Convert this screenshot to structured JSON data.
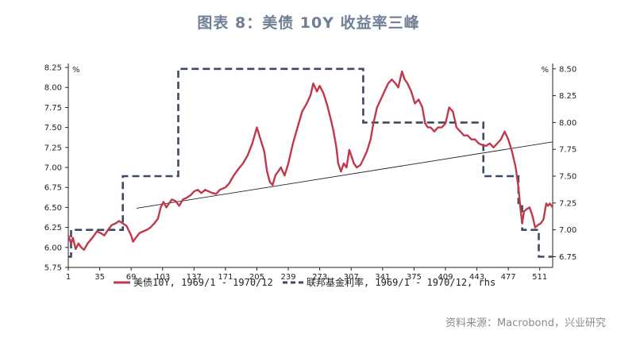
{
  "title": "图表 8：美债 10Y 收益率三峰",
  "source": "资料来源：Macrobond，兴业研究",
  "chart_data": {
    "type": "line",
    "x_ticks": [
      1,
      35,
      69,
      103,
      137,
      171,
      205,
      239,
      273,
      307,
      341,
      375,
      409,
      443,
      477,
      511
    ],
    "xlim": [
      1,
      525
    ],
    "left_axis": {
      "unit": "%",
      "ylim": [
        5.75,
        8.3
      ],
      "ticks": [
        "5.75",
        "6.00",
        "6.25",
        "6.50",
        "6.75",
        "7.00",
        "7.25",
        "7.50",
        "7.75",
        "8.00",
        "8.25"
      ]
    },
    "right_axis": {
      "unit": "%",
      "ylim": [
        6.65,
        8.55
      ],
      "ticks": [
        "6.75",
        "7.00",
        "7.25",
        "7.50",
        "7.75",
        "8.00",
        "8.25",
        "8.50"
      ]
    },
    "series": [
      {
        "name": "美债10Y, 1969/1 - 1970/12",
        "axis": "left",
        "color": "#c0394b",
        "style": "solid",
        "points": [
          [
            1,
            6.15
          ],
          [
            4,
            6.05
          ],
          [
            6,
            6.12
          ],
          [
            9,
            5.98
          ],
          [
            12,
            6.05
          ],
          [
            15,
            6.0
          ],
          [
            18,
            5.97
          ],
          [
            22,
            6.05
          ],
          [
            27,
            6.12
          ],
          [
            32,
            6.2
          ],
          [
            36,
            6.18
          ],
          [
            40,
            6.15
          ],
          [
            44,
            6.22
          ],
          [
            48,
            6.28
          ],
          [
            52,
            6.3
          ],
          [
            56,
            6.33
          ],
          [
            60,
            6.3
          ],
          [
            64,
            6.27
          ],
          [
            66,
            6.22
          ],
          [
            69,
            6.15
          ],
          [
            71,
            6.07
          ],
          [
            74,
            6.12
          ],
          [
            78,
            6.18
          ],
          [
            82,
            6.2
          ],
          [
            86,
            6.22
          ],
          [
            90,
            6.25
          ],
          [
            94,
            6.3
          ],
          [
            98,
            6.36
          ],
          [
            101,
            6.5
          ],
          [
            104,
            6.57
          ],
          [
            107,
            6.5
          ],
          [
            110,
            6.55
          ],
          [
            113,
            6.6
          ],
          [
            117,
            6.58
          ],
          [
            121,
            6.52
          ],
          [
            125,
            6.6
          ],
          [
            129,
            6.62
          ],
          [
            133,
            6.65
          ],
          [
            137,
            6.7
          ],
          [
            141,
            6.72
          ],
          [
            145,
            6.68
          ],
          [
            149,
            6.72
          ],
          [
            153,
            6.7
          ],
          [
            157,
            6.68
          ],
          [
            161,
            6.67
          ],
          [
            165,
            6.72
          ],
          [
            171,
            6.75
          ],
          [
            175,
            6.8
          ],
          [
            180,
            6.9
          ],
          [
            185,
            6.98
          ],
          [
            190,
            7.05
          ],
          [
            195,
            7.15
          ],
          [
            200,
            7.3
          ],
          [
            205,
            7.5
          ],
          [
            209,
            7.35
          ],
          [
            213,
            7.2
          ],
          [
            216,
            6.95
          ],
          [
            219,
            6.82
          ],
          [
            222,
            6.78
          ],
          [
            225,
            6.9
          ],
          [
            228,
            6.95
          ],
          [
            231,
            7.0
          ],
          [
            235,
            6.9
          ],
          [
            239,
            7.05
          ],
          [
            244,
            7.3
          ],
          [
            249,
            7.5
          ],
          [
            254,
            7.7
          ],
          [
            259,
            7.8
          ],
          [
            263,
            7.9
          ],
          [
            266,
            8.05
          ],
          [
            270,
            7.95
          ],
          [
            273,
            8.02
          ],
          [
            277,
            7.93
          ],
          [
            281,
            7.78
          ],
          [
            285,
            7.6
          ],
          [
            288,
            7.45
          ],
          [
            291,
            7.25
          ],
          [
            293,
            7.05
          ],
          [
            296,
            6.95
          ],
          [
            299,
            7.05
          ],
          [
            302,
            7.0
          ],
          [
            305,
            7.22
          ],
          [
            307,
            7.15
          ],
          [
            310,
            7.05
          ],
          [
            313,
            7.0
          ],
          [
            317,
            7.03
          ],
          [
            320,
            7.1
          ],
          [
            324,
            7.2
          ],
          [
            328,
            7.35
          ],
          [
            331,
            7.55
          ],
          [
            335,
            7.75
          ],
          [
            339,
            7.85
          ],
          [
            343,
            7.95
          ],
          [
            347,
            8.05
          ],
          [
            351,
            8.1
          ],
          [
            355,
            8.05
          ],
          [
            358,
            8.0
          ],
          [
            362,
            8.2
          ],
          [
            365,
            8.1
          ],
          [
            368,
            8.05
          ],
          [
            372,
            7.95
          ],
          [
            376,
            7.8
          ],
          [
            380,
            7.85
          ],
          [
            384,
            7.75
          ],
          [
            387,
            7.55
          ],
          [
            390,
            7.5
          ],
          [
            393,
            7.5
          ],
          [
            397,
            7.45
          ],
          [
            401,
            7.5
          ],
          [
            405,
            7.5
          ],
          [
            409,
            7.55
          ],
          [
            413,
            7.75
          ],
          [
            417,
            7.7
          ],
          [
            421,
            7.5
          ],
          [
            425,
            7.45
          ],
          [
            429,
            7.4
          ],
          [
            433,
            7.4
          ],
          [
            437,
            7.35
          ],
          [
            441,
            7.35
          ],
          [
            445,
            7.3
          ],
          [
            449,
            7.28
          ],
          [
            453,
            7.27
          ],
          [
            457,
            7.3
          ],
          [
            461,
            7.25
          ],
          [
            465,
            7.3
          ],
          [
            469,
            7.35
          ],
          [
            473,
            7.45
          ],
          [
            477,
            7.35
          ],
          [
            481,
            7.2
          ],
          [
            485,
            7.0
          ],
          [
            488,
            6.75
          ],
          [
            490,
            6.5
          ],
          [
            492,
            6.3
          ],
          [
            494,
            6.45
          ],
          [
            497,
            6.48
          ],
          [
            500,
            6.5
          ],
          [
            503,
            6.4
          ],
          [
            506,
            6.25
          ],
          [
            509,
            6.28
          ],
          [
            512,
            6.3
          ],
          [
            515,
            6.35
          ],
          [
            518,
            6.55
          ],
          [
            520,
            6.52
          ],
          [
            522,
            6.55
          ],
          [
            525,
            6.5
          ]
        ]
      },
      {
        "name": "联邦基金利率, 1969/1 - 1970/12, rhs",
        "axis": "right",
        "color": "#3d4a63",
        "style": "dashed",
        "points": [
          [
            1,
            6.75
          ],
          [
            4,
            6.75
          ],
          [
            4,
            7.0
          ],
          [
            60,
            7.0
          ],
          [
            60,
            7.5
          ],
          [
            120,
            7.5
          ],
          [
            120,
            8.5
          ],
          [
            320,
            8.5
          ],
          [
            320,
            8.0
          ],
          [
            450,
            8.0
          ],
          [
            450,
            7.5
          ],
          [
            488,
            7.5
          ],
          [
            488,
            7.25
          ],
          [
            492,
            7.25
          ],
          [
            492,
            7.0
          ],
          [
            510,
            7.0
          ],
          [
            510,
            6.75
          ],
          [
            525,
            6.75
          ]
        ]
      },
      {
        "name": "",
        "axis": "left",
        "color": "#222222",
        "style": "thin",
        "points": [
          [
            75,
            6.49
          ],
          [
            525,
            7.32
          ]
        ]
      }
    ]
  }
}
